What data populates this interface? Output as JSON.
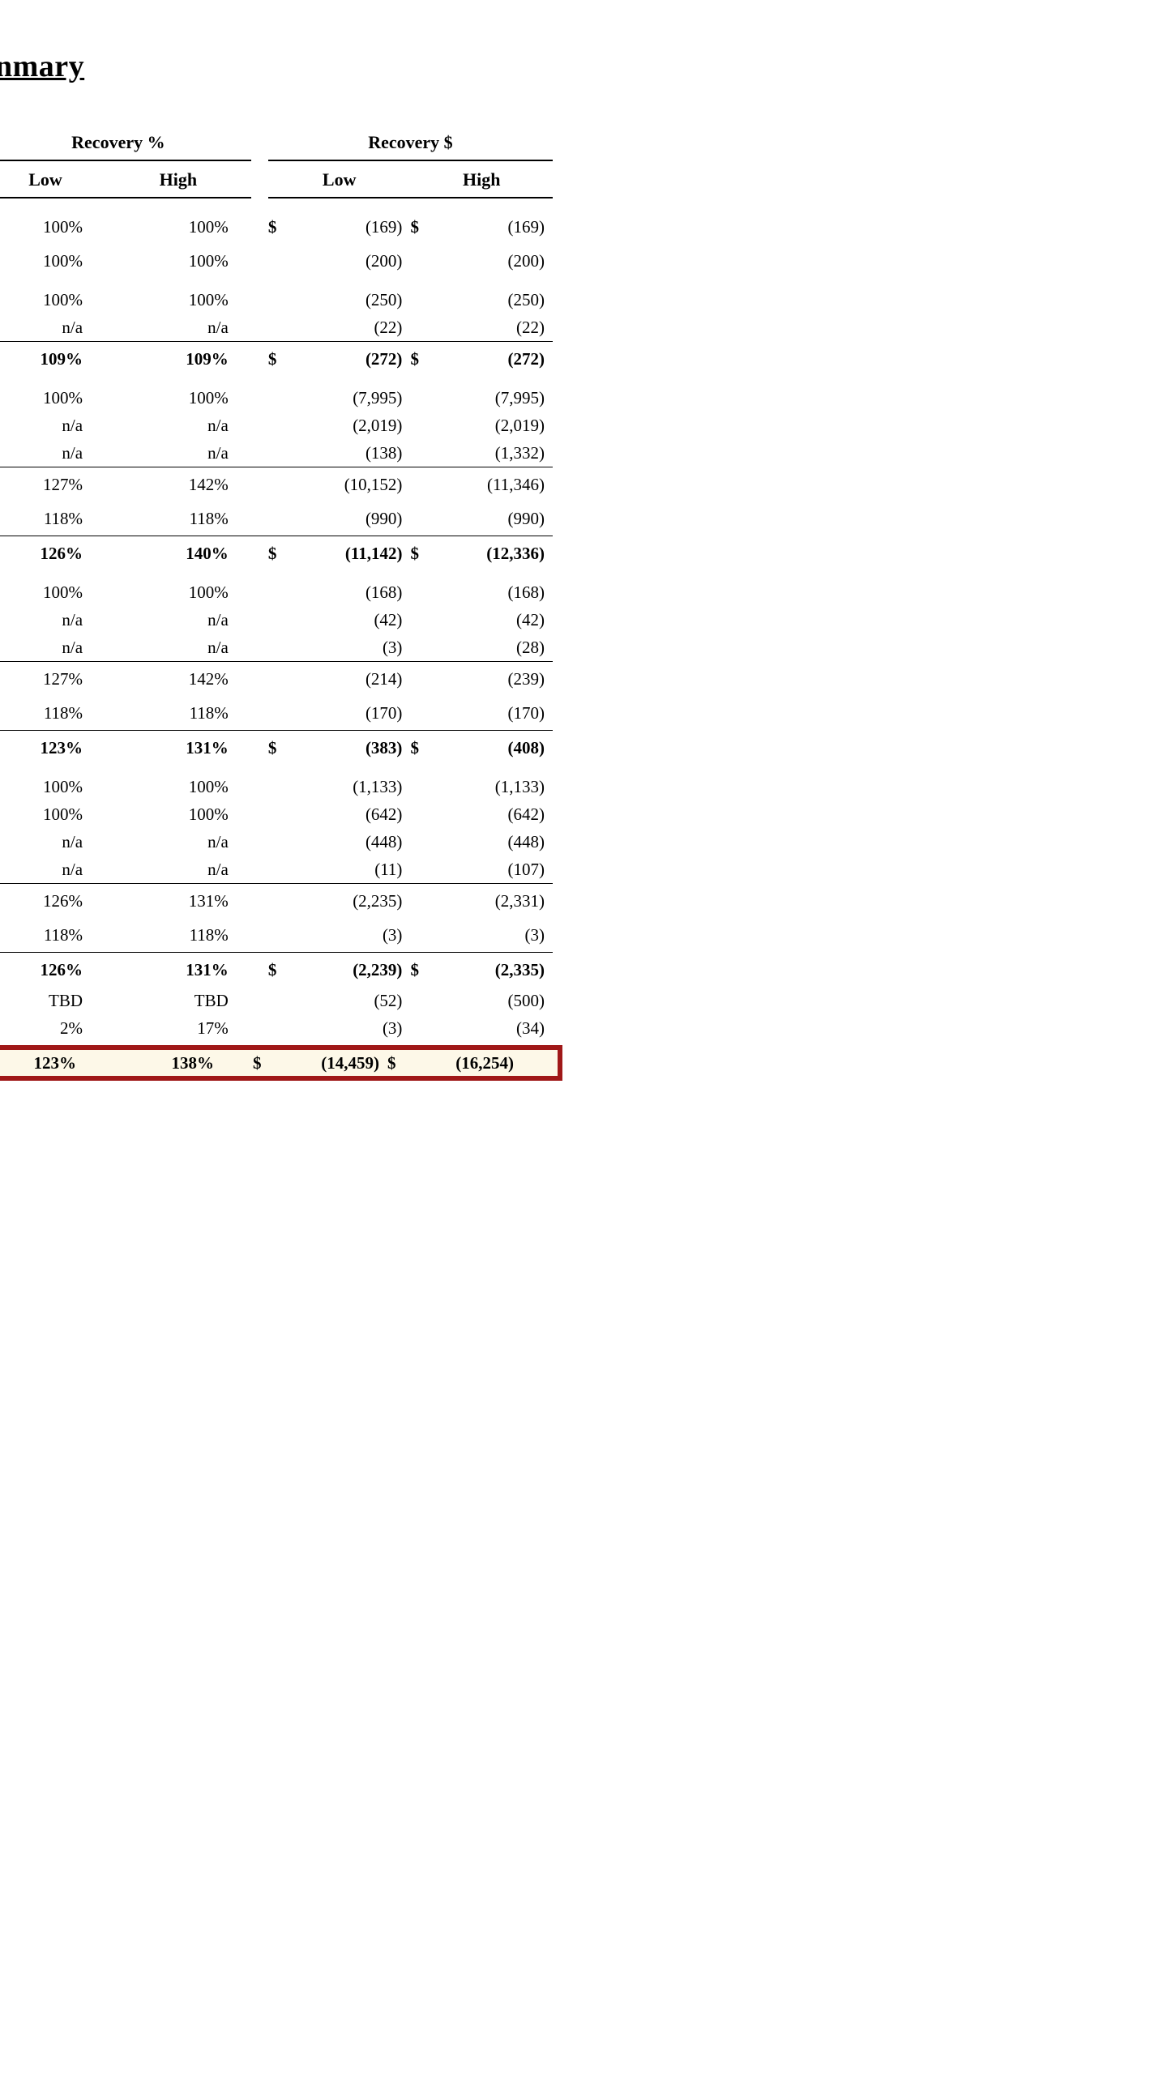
{
  "title": "nmary",
  "headers": {
    "group_pct": "Recovery %",
    "group_amt": "Recovery $",
    "low": "Low",
    "high": "High"
  },
  "colors": {
    "total_border": "#a01818",
    "total_bg": "#fdf8e8",
    "text": "#000000",
    "page_bg": "#ffffff"
  },
  "rows": [
    {
      "pct_low": "100%",
      "pct_high": "100%",
      "sym_low": "$",
      "amt_low": "(169)",
      "sym_high": "$",
      "amt_high": "(169)",
      "bold": false,
      "top_border": false,
      "tall": true
    },
    {
      "pct_low": "100%",
      "pct_high": "100%",
      "sym_low": "",
      "amt_low": "(200)",
      "sym_high": "",
      "amt_high": "(200)",
      "bold": false,
      "top_border": false,
      "tall": true,
      "gap_below": true
    },
    {
      "pct_low": "100%",
      "pct_high": "100%",
      "sym_low": "",
      "amt_low": "(250)",
      "sym_high": "",
      "amt_high": "(250)",
      "bold": false,
      "top_border": false
    },
    {
      "pct_low": "n/a",
      "pct_high": "n/a",
      "sym_low": "",
      "amt_low": "(22)",
      "sym_high": "",
      "amt_high": "(22)",
      "bold": false,
      "top_border": false
    },
    {
      "pct_low": "109%",
      "pct_high": "109%",
      "sym_low": "$",
      "amt_low": "(272)",
      "sym_high": "$",
      "amt_high": "(272)",
      "bold": true,
      "top_border": true,
      "tall": true
    },
    {
      "pct_low": "100%",
      "pct_high": "100%",
      "sym_low": "",
      "amt_low": "(7,995)",
      "sym_high": "",
      "amt_high": "(7,995)",
      "bold": false,
      "top_border": false,
      "gap_above": true
    },
    {
      "pct_low": "n/a",
      "pct_high": "n/a",
      "sym_low": "",
      "amt_low": "(2,019)",
      "sym_high": "",
      "amt_high": "(2,019)",
      "bold": false,
      "top_border": false
    },
    {
      "pct_low": "n/a",
      "pct_high": "n/a",
      "sym_low": "",
      "amt_low": "(138)",
      "sym_high": "",
      "amt_high": "(1,332)",
      "bold": false,
      "top_border": false
    },
    {
      "pct_low": "127%",
      "pct_high": "142%",
      "sym_low": "",
      "amt_low": "(10,152)",
      "sym_high": "",
      "amt_high": "(11,346)",
      "bold": false,
      "top_border": true,
      "tall": true
    },
    {
      "pct_low": "118%",
      "pct_high": "118%",
      "sym_low": "",
      "amt_low": "(990)",
      "sym_high": "",
      "amt_high": "(990)",
      "bold": false,
      "top_border": false,
      "tall": true
    },
    {
      "pct_low": "126%",
      "pct_high": "140%",
      "sym_low": "$",
      "amt_low": "(11,142)",
      "sym_high": "$",
      "amt_high": "(12,336)",
      "bold": true,
      "top_border": true,
      "tall": true
    },
    {
      "pct_low": "100%",
      "pct_high": "100%",
      "sym_low": "",
      "amt_low": "(168)",
      "sym_high": "",
      "amt_high": "(168)",
      "bold": false,
      "top_border": false,
      "gap_above": true
    },
    {
      "pct_low": "n/a",
      "pct_high": "n/a",
      "sym_low": "",
      "amt_low": "(42)",
      "sym_high": "",
      "amt_high": "(42)",
      "bold": false,
      "top_border": false
    },
    {
      "pct_low": "n/a",
      "pct_high": "n/a",
      "sym_low": "",
      "amt_low": "(3)",
      "sym_high": "",
      "amt_high": "(28)",
      "bold": false,
      "top_border": false
    },
    {
      "pct_low": "127%",
      "pct_high": "142%",
      "sym_low": "",
      "amt_low": "(214)",
      "sym_high": "",
      "amt_high": "(239)",
      "bold": false,
      "top_border": true,
      "tall": true
    },
    {
      "pct_low": "118%",
      "pct_high": "118%",
      "sym_low": "",
      "amt_low": "(170)",
      "sym_high": "",
      "amt_high": "(170)",
      "bold": false,
      "top_border": false,
      "tall": true
    },
    {
      "pct_low": "123%",
      "pct_high": "131%",
      "sym_low": "$",
      "amt_low": "(383)",
      "sym_high": "$",
      "amt_high": "(408)",
      "bold": true,
      "top_border": true,
      "tall": true
    },
    {
      "pct_low": "100%",
      "pct_high": "100%",
      "sym_low": "",
      "amt_low": "(1,133)",
      "sym_high": "",
      "amt_high": "(1,133)",
      "bold": false,
      "top_border": false,
      "gap_above": true
    },
    {
      "pct_low": "100%",
      "pct_high": "100%",
      "sym_low": "",
      "amt_low": "(642)",
      "sym_high": "",
      "amt_high": "(642)",
      "bold": false,
      "top_border": false
    },
    {
      "pct_low": "n/a",
      "pct_high": "n/a",
      "sym_low": "",
      "amt_low": "(448)",
      "sym_high": "",
      "amt_high": "(448)",
      "bold": false,
      "top_border": false
    },
    {
      "pct_low": "n/a",
      "pct_high": "n/a",
      "sym_low": "",
      "amt_low": "(11)",
      "sym_high": "",
      "amt_high": "(107)",
      "bold": false,
      "top_border": false
    },
    {
      "pct_low": "126%",
      "pct_high": "131%",
      "sym_low": "",
      "amt_low": "(2,235)",
      "sym_high": "",
      "amt_high": "(2,331)",
      "bold": false,
      "top_border": true,
      "tall": true
    },
    {
      "pct_low": "118%",
      "pct_high": "118%",
      "sym_low": "",
      "amt_low": "(3)",
      "sym_high": "",
      "amt_high": "(3)",
      "bold": false,
      "top_border": false,
      "tall": true
    },
    {
      "pct_low": "126%",
      "pct_high": "131%",
      "sym_low": "$",
      "amt_low": "(2,239)",
      "sym_high": "$",
      "amt_high": "(2,335)",
      "bold": true,
      "top_border": true,
      "tall": true
    },
    {
      "pct_low": "TBD",
      "pct_high": "TBD",
      "sym_low": "",
      "amt_low": "(52)",
      "sym_high": "",
      "amt_high": "(500)",
      "bold": false,
      "top_border": false
    },
    {
      "pct_low": "2%",
      "pct_high": "17%",
      "sym_low": "",
      "amt_low": "(3)",
      "sym_high": "",
      "amt_high": "(34)",
      "bold": false,
      "top_border": false
    }
  ],
  "total": {
    "pct_low": "123%",
    "pct_high": "138%",
    "sym_low": "$",
    "amt_low": "(14,459)",
    "sym_high": "$",
    "amt_high": "(16,254)"
  }
}
